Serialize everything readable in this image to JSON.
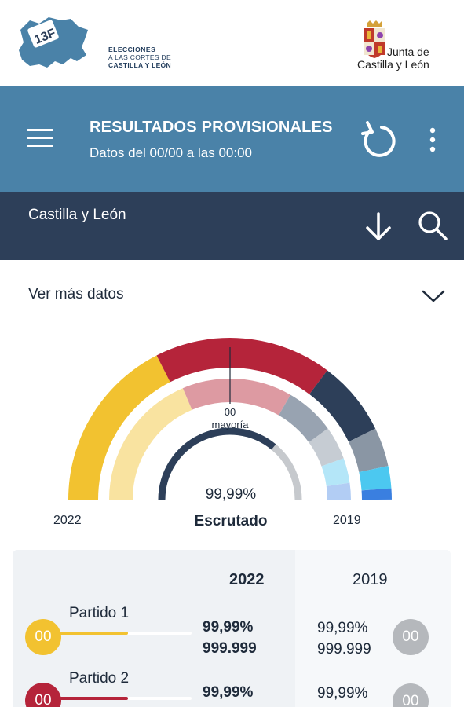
{
  "logo_left": {
    "badge": "13F",
    "line1": "ELECCIONES",
    "line2": "A LAS CORTES DE",
    "line3": "CASTILLA Y LEÓN"
  },
  "logo_right": {
    "line1": "Junta de",
    "line2": "Castilla y León"
  },
  "header": {
    "title": "RESULTADOS PROVISIONALES",
    "subtitle": "Datos del 00/00 a las 00:00"
  },
  "region": {
    "label": "Castilla y León"
  },
  "more_data": {
    "label": "Ver más datos"
  },
  "hemicycle": {
    "majority_value": "00",
    "majority_label": "mayoría",
    "scrutiny_percent": "99,99%",
    "scrutiny_label": "Escrutado",
    "year_left": "2022",
    "year_right": "2019",
    "scrutiny_fraction": 0.72
  },
  "results": {
    "col_2022": "2022",
    "col_2019": "2019",
    "parties": [
      {
        "name": "Partido 1",
        "seats_2022": "00",
        "pct_2022": "99,99%",
        "votes_2022": "999.999",
        "pct_2019": "99,99%",
        "votes_2019": "999.999",
        "seats_2019": "00",
        "color": "#f2c230",
        "bar_fraction": 0.52
      },
      {
        "name": "Partido 2",
        "seats_2022": "00",
        "pct_2022": "99,99%",
        "votes_2022": "",
        "pct_2019": "99,99%",
        "votes_2019": "",
        "seats_2019": "00",
        "color": "#b5243a",
        "bar_fraction": 0.52
      }
    ]
  },
  "colors": {
    "header": "#4a82a8",
    "region_bar": "#2d3f59",
    "party_yellow": "#f2c230",
    "party_red": "#b5243a",
    "party_navy": "#2d3f59",
    "party_grey": "#8a96a4",
    "party_cyan": "#4cc8f0",
    "party_blue": "#3a7fe0",
    "badge_grey": "#b5b8bc"
  }
}
